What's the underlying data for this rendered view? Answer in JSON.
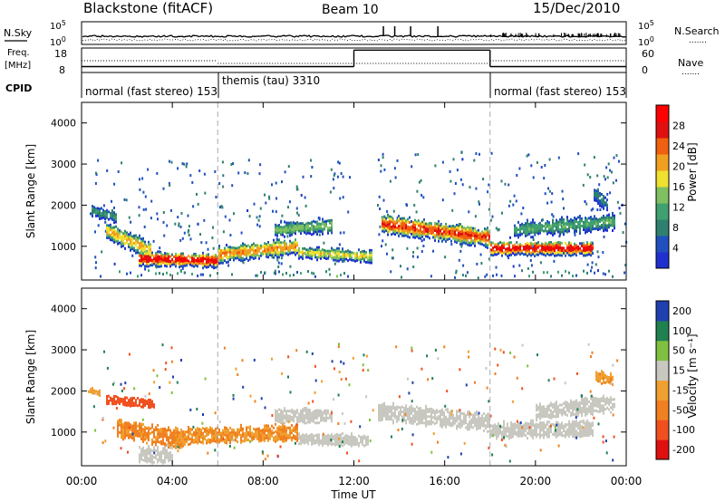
{
  "header": {
    "radar": "Blackstone (fitACF)",
    "beam": "Beam 10",
    "date": "15/Dec/2010"
  },
  "labels": {
    "nsky": "N.Sky",
    "nsearch": "N.Search",
    "freq_line1": "Freq.",
    "freq_line2": "[MHz]",
    "nave": "Nave",
    "cpid": "CPID",
    "nsky_top": "10^5",
    "nsky_bottom": "10^0",
    "nsearch_top": "10^5",
    "nsearch_bottom": "10^0",
    "freq_top": "18",
    "freq_bottom": "8",
    "nave_top": "60",
    "nave_bottom": "0",
    "dots": "......."
  },
  "cpid_segments": [
    {
      "label": "normal (fast stereo) 153"
    },
    {
      "label": "themis (tau) 3310"
    },
    {
      "label": "normal (fast stereo) 153"
    }
  ],
  "colors": {
    "power": [
      "#2030d0",
      "#2050c0",
      "#308070",
      "#40a070",
      "#80c060",
      "#f0e030",
      "#f0a020",
      "#f06010",
      "#e01010",
      "#ff0000"
    ],
    "velocity": [
      "#e01010",
      "#f05020",
      "#f08020",
      "#f0a030",
      "#c8c8c0",
      "#80c040",
      "#208050",
      "#2040b0"
    ],
    "grey": "#c8c8c0"
  },
  "chart_data": [
    {
      "type": "heatmap",
      "ylabel": "Slant Range [km]",
      "ylim": [
        180,
        4500
      ],
      "yticks": [
        "1000",
        "2000",
        "3000",
        "4000"
      ],
      "xlim": [
        0,
        24
      ],
      "colorbar_label": "Power [dB]",
      "colorbar_ticks": [
        "4",
        "8",
        "12",
        "16",
        "20",
        "24",
        "28"
      ],
      "colorbar_range": [
        0,
        32
      ],
      "scatter_bands": [
        {
          "t0": 0.5,
          "t1": 11.8,
          "r0": 200,
          "r1": 3100
        },
        {
          "t0": 13.0,
          "t1": 24.0,
          "r0": 200,
          "r1": 3300
        }
      ],
      "echo_bands": [
        {
          "t0": 0.3,
          "t1": 1.5,
          "center": [
            1900,
            1700
          ],
          "width": 250,
          "peak": 10
        },
        {
          "t0": 1.0,
          "t1": 3.0,
          "center": [
            1400,
            900
          ],
          "width": 400,
          "peak": 20
        },
        {
          "t0": 2.5,
          "t1": 6.0,
          "center": [
            700,
            650
          ],
          "width": 300,
          "peak": 29
        },
        {
          "t0": 6.0,
          "t1": 9.5,
          "center": [
            800,
            1000
          ],
          "width": 350,
          "peak": 22
        },
        {
          "t0": 8.5,
          "t1": 11.0,
          "center": [
            1400,
            1500
          ],
          "width": 300,
          "peak": 14
        },
        {
          "t0": 9.5,
          "t1": 12.8,
          "center": [
            850,
            750
          ],
          "width": 250,
          "peak": 18
        },
        {
          "t0": 13.2,
          "t1": 18.0,
          "center": [
            1550,
            1200
          ],
          "width": 400,
          "peak": 26
        },
        {
          "t0": 18.0,
          "t1": 22.5,
          "center": [
            950,
            950
          ],
          "width": 300,
          "peak": 29
        },
        {
          "t0": 19.0,
          "t1": 23.5,
          "center": [
            1400,
            1600
          ],
          "width": 350,
          "peak": 12
        },
        {
          "t0": 22.5,
          "t1": 23.2,
          "center": [
            2300,
            2000
          ],
          "width": 300,
          "peak": 8
        }
      ]
    },
    {
      "type": "heatmap",
      "ylabel": "Slant Range [km]",
      "ylim": [
        180,
        4500
      ],
      "yticks": [
        "1000",
        "2000",
        "3000",
        "4000"
      ],
      "xlabel": "Time UT",
      "xlim": [
        0,
        24
      ],
      "xticks": [
        "00:00",
        "04:00",
        "08:00",
        "12:00",
        "16:00",
        "20:00",
        "00:00"
      ],
      "colorbar_label": "Velocity [m s⁻¹]",
      "colorbar_ticks": [
        "-200",
        "-100",
        "-50",
        "-15",
        "15",
        "50",
        "100",
        "200"
      ],
      "colorbar_range": [
        -250,
        250
      ],
      "echo_bands": [
        {
          "t0": 0.2,
          "t1": 0.8,
          "center": [
            2050,
            1950
          ],
          "width": 120,
          "value": -30
        },
        {
          "t0": 1.0,
          "t1": 3.2,
          "center": [
            1800,
            1700
          ],
          "width": 200,
          "value": -120
        },
        {
          "t0": 1.5,
          "t1": 4.5,
          "center": [
            1100,
            800
          ],
          "width": 400,
          "value": -60
        },
        {
          "t0": 2.5,
          "t1": 4.0,
          "center": [
            450,
            450
          ],
          "width": 350,
          "value": 0
        },
        {
          "t0": 4.0,
          "t1": 9.5,
          "center": [
            900,
            1000
          ],
          "width": 350,
          "value": -50
        },
        {
          "t0": 8.5,
          "t1": 11.0,
          "center": [
            1400,
            1400
          ],
          "width": 300,
          "value": 0
        },
        {
          "t0": 9.5,
          "t1": 12.6,
          "center": [
            850,
            800
          ],
          "width": 250,
          "value": 0
        },
        {
          "t0": 13.0,
          "t1": 18.0,
          "center": [
            1500,
            1250
          ],
          "width": 400,
          "value": 0
        },
        {
          "t0": 18.0,
          "t1": 22.5,
          "center": [
            1050,
            1100
          ],
          "width": 350,
          "value": 0
        },
        {
          "t0": 20.0,
          "t1": 23.5,
          "center": [
            1500,
            1700
          ],
          "width": 350,
          "value": 0
        },
        {
          "t0": 22.6,
          "t1": 23.4,
          "center": [
            2350,
            2300
          ],
          "width": 250,
          "value": -40
        }
      ]
    },
    {
      "type": "line",
      "ylabel": "Freq. [MHz]",
      "series": [
        {
          "name": "Freq.",
          "x": [
            0,
            6,
            12,
            18,
            24
          ],
          "y": [
            10.5,
            10.5,
            17.5,
            10.5,
            10.5
          ]
        }
      ]
    },
    {
      "type": "line",
      "ylabel": "N.Sky",
      "note": "noise panel with log axis 10^0 .. 10^5; spikes near 12-16 UT",
      "spike_hours": [
        13.3,
        13.8,
        14.5,
        15.7
      ]
    }
  ]
}
